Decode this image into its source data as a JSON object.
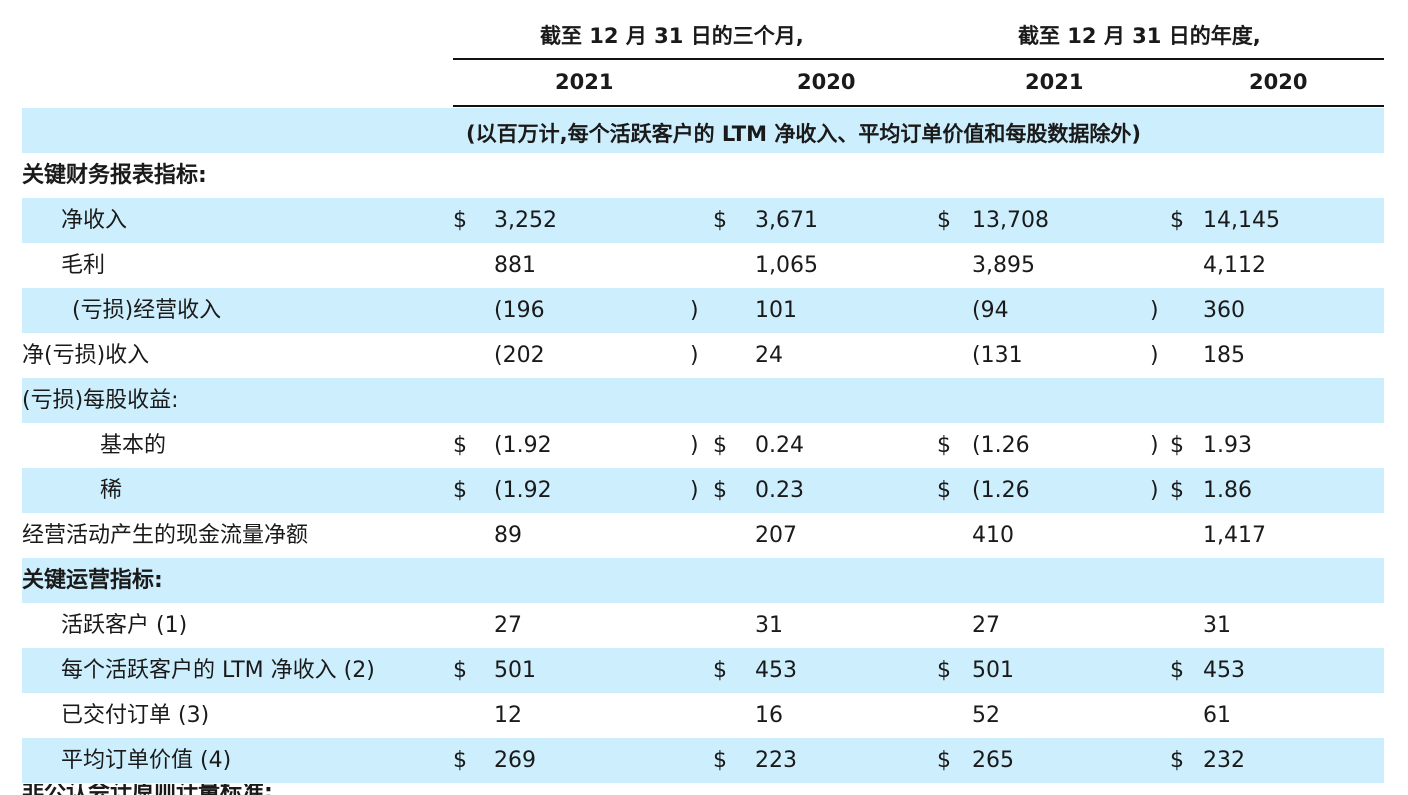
{
  "header": {
    "group1": "截至 12 月 31 日的三个月,",
    "group2": "截至 12 月 31 日的年度,",
    "years": [
      "2021",
      "2020",
      "2021",
      "2020"
    ],
    "units_note": "(以百万计,每个活跃客户的 LTM 净收入、平均订单价值和每股数据除外)"
  },
  "rows": [
    {
      "label": "关键财务报表指标:",
      "bold": true,
      "indent": 0,
      "band": false,
      "cells": []
    },
    {
      "label": "净收入",
      "indent": 1,
      "band": true,
      "cells": [
        {
          "d": "$",
          "v": "3,252",
          "p": ""
        },
        {
          "d": "$",
          "v": "3,671",
          "p": ""
        },
        {
          "d": "$",
          "v": "13,708",
          "p": ""
        },
        {
          "d": "$",
          "v": "14,145",
          "p": ""
        }
      ]
    },
    {
      "label": "毛利",
      "indent": 1,
      "band": false,
      "cells": [
        {
          "d": "",
          "v": "881",
          "p": ""
        },
        {
          "d": "",
          "v": "1,065",
          "p": ""
        },
        {
          "d": "",
          "v": "3,895",
          "p": ""
        },
        {
          "d": "",
          "v": "4,112",
          "p": ""
        }
      ]
    },
    {
      "label": "(亏损)经营收入",
      "indent": 2,
      "band": true,
      "cells": [
        {
          "d": "",
          "v": "(196",
          "p": ")"
        },
        {
          "d": "",
          "v": "101",
          "p": ""
        },
        {
          "d": "",
          "v": "(94",
          "p": ")"
        },
        {
          "d": "",
          "v": "360",
          "p": ""
        }
      ]
    },
    {
      "label": "净(亏损)收入",
      "indent": 0,
      "band": false,
      "cells": [
        {
          "d": "",
          "v": "(202",
          "p": ")"
        },
        {
          "d": "",
          "v": "24",
          "p": ""
        },
        {
          "d": "",
          "v": "(131",
          "p": ")"
        },
        {
          "d": "",
          "v": "185",
          "p": ""
        }
      ]
    },
    {
      "label": "(亏损)每股收益:",
      "indent": 0,
      "band": true,
      "cells": []
    },
    {
      "label": "基本的",
      "indent": 3,
      "band": false,
      "cells": [
        {
          "d": "$",
          "v": "(1.92",
          "p": ")"
        },
        {
          "d": "$",
          "v": "0.24",
          "p": ""
        },
        {
          "d": "$",
          "v": "(1.26",
          "p": ")"
        },
        {
          "d": "$",
          "v": "1.93",
          "p": ""
        }
      ]
    },
    {
      "label": "稀",
      "indent": 3,
      "band": true,
      "cells": [
        {
          "d": "$",
          "v": "(1.92",
          "p": ")"
        },
        {
          "d": "$",
          "v": "0.23",
          "p": ""
        },
        {
          "d": "$",
          "v": "(1.26",
          "p": ")"
        },
        {
          "d": "$",
          "v": "1.86",
          "p": ""
        }
      ]
    },
    {
      "label": "经营活动产生的现金流量净额",
      "indent": 0,
      "band": false,
      "cells": [
        {
          "d": "",
          "v": "89",
          "p": ""
        },
        {
          "d": "",
          "v": "207",
          "p": ""
        },
        {
          "d": "",
          "v": "410",
          "p": ""
        },
        {
          "d": "",
          "v": "1,417",
          "p": ""
        }
      ]
    },
    {
      "label": "关键运营指标:",
      "bold": true,
      "indent": 0,
      "band": true,
      "cells": []
    },
    {
      "label": "活跃客户 (1)",
      "indent": 1,
      "band": false,
      "cells": [
        {
          "d": "",
          "v": "27",
          "p": ""
        },
        {
          "d": "",
          "v": "31",
          "p": ""
        },
        {
          "d": "",
          "v": "27",
          "p": ""
        },
        {
          "d": "",
          "v": "31",
          "p": ""
        }
      ]
    },
    {
      "label": "每个活跃客户的 LTM 净收入 (2)",
      "indent": 1,
      "band": true,
      "cells": [
        {
          "d": "$",
          "v": "501",
          "p": ""
        },
        {
          "d": "$",
          "v": "453",
          "p": ""
        },
        {
          "d": "$",
          "v": "501",
          "p": ""
        },
        {
          "d": "$",
          "v": "453",
          "p": ""
        }
      ]
    },
    {
      "label": "已交付订单 (3)",
      "indent": 1,
      "band": false,
      "cells": [
        {
          "d": "",
          "v": "12",
          "p": ""
        },
        {
          "d": "",
          "v": "16",
          "p": ""
        },
        {
          "d": "",
          "v": "52",
          "p": ""
        },
        {
          "d": "",
          "v": "61",
          "p": ""
        }
      ]
    },
    {
      "label": "平均订单价值 (4)",
      "indent": 1,
      "band": true,
      "cells": [
        {
          "d": "$",
          "v": "269",
          "p": ""
        },
        {
          "d": "$",
          "v": "223",
          "p": ""
        },
        {
          "d": "$",
          "v": "265",
          "p": ""
        },
        {
          "d": "$",
          "v": "232",
          "p": ""
        }
      ]
    }
  ],
  "partial_footer": "非公认会计原则计量标准:"
}
